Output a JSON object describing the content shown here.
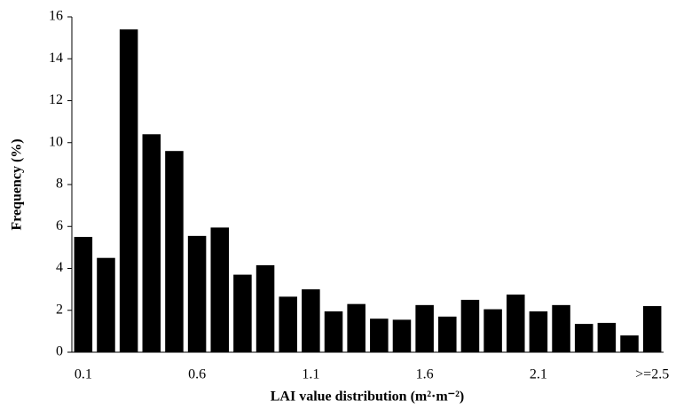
{
  "chart_data": {
    "type": "bar",
    "xlabel": "LAI value distribution (m²·m⁻²)",
    "ylabel": "Frequency (%)",
    "categories": [
      "0.1",
      null,
      null,
      null,
      null,
      "0.6",
      null,
      null,
      null,
      null,
      "1.1",
      null,
      null,
      null,
      null,
      "1.6",
      null,
      null,
      null,
      null,
      "2.1",
      null,
      null,
      null,
      null,
      ">=2.5"
    ],
    "values": [
      5.5,
      4.5,
      15.4,
      10.4,
      9.6,
      5.55,
      5.95,
      3.7,
      4.15,
      2.65,
      3.0,
      1.95,
      2.3,
      1.6,
      1.55,
      2.25,
      1.7,
      2.5,
      2.05,
      2.75,
      1.95,
      2.25,
      1.35,
      1.4,
      0.8,
      2.2
    ],
    "color": "#000000",
    "ylim": [
      0,
      16
    ],
    "yticks": [
      0,
      2,
      4,
      6,
      8,
      10,
      12,
      14,
      16
    ],
    "grid": false
  }
}
